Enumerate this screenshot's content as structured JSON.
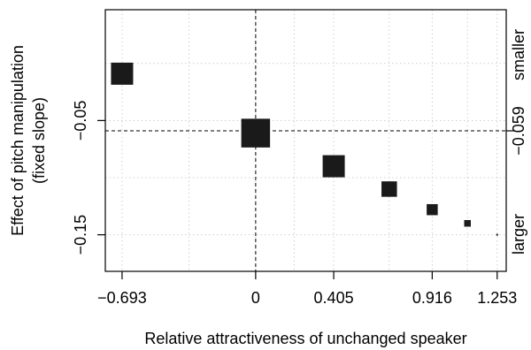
{
  "chart_data": {
    "type": "scatter",
    "title": "",
    "xlabel": "Relative attractiveness of unchanged speaker",
    "ylabel_lines": [
      "Effect of pitch manipulation",
      "(fixed slope)"
    ],
    "x_ticks": [
      {
        "value": -0.693,
        "label": "−0.693"
      },
      {
        "value": 0,
        "label": "0"
      },
      {
        "value": 0.405,
        "label": "0.405"
      },
      {
        "value": 0.916,
        "label": "0.916"
      },
      {
        "value": 1.253,
        "label": "1.253"
      }
    ],
    "x_minor_grid": [
      -0.346,
      0.2,
      0.693,
      1.099
    ],
    "y_ticks": [
      {
        "value": -0.05,
        "label": "−0.05"
      },
      {
        "value": -0.15,
        "label": "−0.15"
      }
    ],
    "y_grid": [
      0.0,
      -0.05,
      -0.1,
      -0.15
    ],
    "xlim": [
      -0.78,
      1.3
    ],
    "ylim": [
      -0.182,
      0.047
    ],
    "grid": true,
    "reference_lines": {
      "x": 0,
      "y": -0.059
    },
    "right_labels": {
      "smaller": "smaller",
      "value": "−0.059",
      "larger": "larger"
    },
    "points": [
      {
        "x": -0.693,
        "y": -0.009,
        "weight": 5
      },
      {
        "x": 0.0,
        "y": -0.061,
        "weight": 6.5
      },
      {
        "x": 0.405,
        "y": -0.09,
        "weight": 5
      },
      {
        "x": 0.693,
        "y": -0.11,
        "weight": 3.5
      },
      {
        "x": 0.916,
        "y": -0.128,
        "weight": 2.5
      },
      {
        "x": 1.099,
        "y": -0.14,
        "weight": 1.5
      },
      {
        "x": 1.253,
        "y": -0.15,
        "weight": 0.4
      }
    ],
    "colors": {
      "points": "#1a1a1a",
      "grid": "#cfcfcf",
      "reference": "#000000"
    }
  }
}
